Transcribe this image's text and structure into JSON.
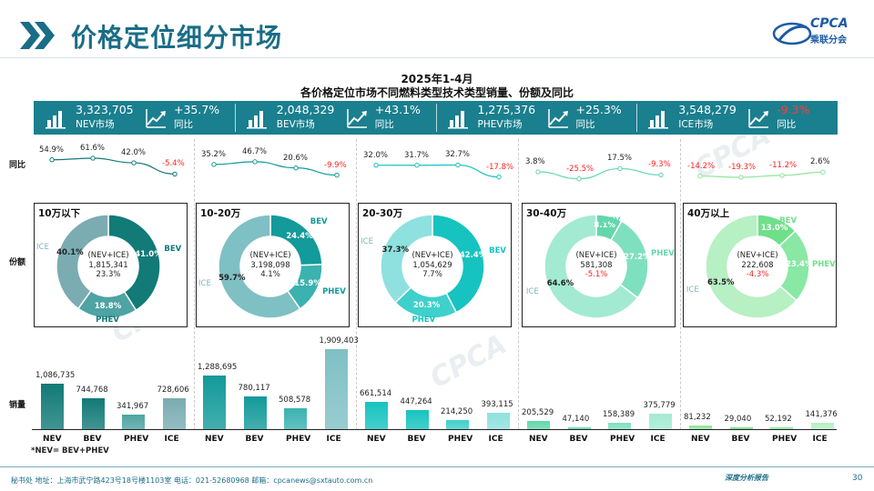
{
  "header": {
    "title": "价格定位细分市场",
    "logo_text": "CPCA",
    "logo_sub": "乘联分会"
  },
  "chart_title_line1": "2025年1-4月",
  "chart_title_line2": "各价格定位市场不同燃料类型技术类型销量、份额及同比",
  "kpis": [
    {
      "value": "3,323,705",
      "label": "NEV市场",
      "yoy": "+35.7%",
      "yoy_label": "同比",
      "negative": false
    },
    {
      "value": "2,048,329",
      "label": "BEV市场",
      "yoy": "+43.1%",
      "yoy_label": "同比",
      "negative": false
    },
    {
      "value": "1,275,376",
      "label": "PHEV市场",
      "yoy": "+25.3%",
      "yoy_label": "同比",
      "negative": false
    },
    {
      "value": "3,548,279",
      "label": "ICE市场",
      "yoy": "-9.3%",
      "yoy_label": "同比",
      "negative": true
    }
  ],
  "row_labels": {
    "yoy": "同比",
    "share": "份额",
    "sales": "销量"
  },
  "colors": {
    "teal_dark": "#1a7f8e",
    "seg_colors": [
      {
        "nev": "#127a77",
        "bev": "#127a77",
        "phev": "#4ea3a3",
        "ice": "#7aacb2"
      },
      {
        "nev": "#139a9a",
        "bev": "#139a9a",
        "phev": "#3bb2b0",
        "ice": "#7fc0c4"
      },
      {
        "nev": "#16c3c0",
        "bev": "#16c3c0",
        "phev": "#3fd0cb",
        "ice": "#8ee1de"
      },
      {
        "nev": "#63d7ac",
        "bev": "#63d7ac",
        "phev": "#7fe0bf",
        "ice": "#a3ead3"
      },
      {
        "nev": "#8ee59a",
        "bev": "#6ee08a",
        "phev": "#88e8a4",
        "ice": "#b6f0c3"
      }
    ],
    "negative": "#ff2020"
  },
  "chart_data": {
    "type": "bar",
    "segments": [
      {
        "name": "10万以下",
        "yoy": {
          "labels": [
            "54.9%",
            "61.6%",
            "42.0%",
            "-5.4%"
          ],
          "values": [
            54.9,
            61.6,
            42.0,
            -5.4
          ]
        },
        "donut": {
          "center": [
            "(NEV+ICE)",
            "1,815,341",
            "23.3%"
          ],
          "slices": [
            {
              "name": "BEV",
              "value": 41.0,
              "label": "41.0%"
            },
            {
              "name": "PHEV",
              "value": 18.8,
              "label": "18.8%"
            },
            {
              "name": "ICE",
              "value": 40.1,
              "label": "40.1%"
            }
          ]
        },
        "sales": {
          "categories": [
            "NEV",
            "BEV",
            "PHEV",
            "ICE"
          ],
          "values": [
            1086735,
            744768,
            341967,
            728606
          ],
          "labels": [
            "1,086,735",
            "744,768",
            "341,967",
            "728,606"
          ]
        }
      },
      {
        "name": "10-20万",
        "yoy": {
          "labels": [
            "35.2%",
            "46.7%",
            "20.6%",
            "-9.9%"
          ],
          "values": [
            35.2,
            46.7,
            20.6,
            -9.9
          ]
        },
        "donut": {
          "center": [
            "(NEV+ICE)",
            "3,198,098",
            "4.1%"
          ],
          "slices": [
            {
              "name": "BEV",
              "value": 24.4,
              "label": "24.4%"
            },
            {
              "name": "PHEV",
              "value": 15.9,
              "label": "15.9%"
            },
            {
              "name": "ICE",
              "value": 59.7,
              "label": "59.7%"
            }
          ]
        },
        "sales": {
          "categories": [
            "NEV",
            "BEV",
            "PHEV",
            "ICE"
          ],
          "values": [
            1288695,
            780117,
            508578,
            1909403
          ],
          "labels": [
            "1,288,695",
            "780,117",
            "508,578",
            "1,909,403"
          ]
        }
      },
      {
        "name": "20-30万",
        "yoy": {
          "labels": [
            "32.0%",
            "31.7%",
            "32.7%",
            "-17.8%"
          ],
          "values": [
            32.0,
            31.7,
            32.7,
            -17.8
          ]
        },
        "donut": {
          "center": [
            "(NEV+ICE)",
            "1,054,629",
            "7.7%"
          ],
          "slices": [
            {
              "name": "BEV",
              "value": 42.4,
              "label": "42.4%"
            },
            {
              "name": "PHEV",
              "value": 20.3,
              "label": "20.3%"
            },
            {
              "name": "ICE",
              "value": 37.3,
              "label": "37.3%"
            }
          ]
        },
        "sales": {
          "categories": [
            "NEV",
            "BEV",
            "PHEV",
            "ICE"
          ],
          "values": [
            661514,
            447264,
            214250,
            393115
          ],
          "labels": [
            "661,514",
            "447,264",
            "214,250",
            "393,115"
          ]
        }
      },
      {
        "name": "30-40万",
        "yoy": {
          "labels": [
            "3.8%",
            "-25.5%",
            "17.5%",
            "-9.3%"
          ],
          "values": [
            3.8,
            -25.5,
            17.5,
            -9.3
          ]
        },
        "donut": {
          "center": [
            "(NEV+ICE)",
            "581,308",
            "-5.1%"
          ],
          "slices": [
            {
              "name": "BEV",
              "value": 8.1,
              "label": "8.1%"
            },
            {
              "name": "PHEV",
              "value": 27.2,
              "label": "27.2%"
            },
            {
              "name": "ICE",
              "value": 64.6,
              "label": "64.6%"
            }
          ]
        },
        "sales": {
          "categories": [
            "NEV",
            "BEV",
            "PHEV",
            "ICE"
          ],
          "values": [
            205529,
            47140,
            158389,
            375779
          ],
          "labels": [
            "205,529",
            "47,140",
            "158,389",
            "375,779"
          ]
        }
      },
      {
        "name": "40万以上",
        "yoy": {
          "labels": [
            "-14.2%",
            "-19.3%",
            "-11.2%",
            "2.6%"
          ],
          "values": [
            -14.2,
            -19.3,
            -11.2,
            2.6
          ]
        },
        "donut": {
          "center": [
            "(NEV+ICE)",
            "222,608",
            "-4.3%"
          ],
          "slices": [
            {
              "name": "BEV",
              "value": 13.0,
              "label": "13.0%"
            },
            {
              "name": "PHEV",
              "value": 23.4,
              "label": "23.4%"
            },
            {
              "name": "ICE",
              "value": 63.5,
              "label": "63.5%"
            }
          ]
        },
        "sales": {
          "categories": [
            "NEV",
            "BEV",
            "PHEV",
            "ICE"
          ],
          "values": [
            81232,
            29040,
            52192,
            141376
          ],
          "labels": [
            "81,232",
            "29,040",
            "52,192",
            "141,376"
          ]
        }
      }
    ],
    "sales_ylim": [
      0,
      1909403
    ]
  },
  "note": "*NEV= BEV+PHEV",
  "footer": {
    "address": "秘书处  地址：上海市武宁路423号18号楼1103室  电话：021-52680968  邮箱：cpcanews@sxtauto.com.cn",
    "report": "深度分析报告",
    "page": "30"
  }
}
